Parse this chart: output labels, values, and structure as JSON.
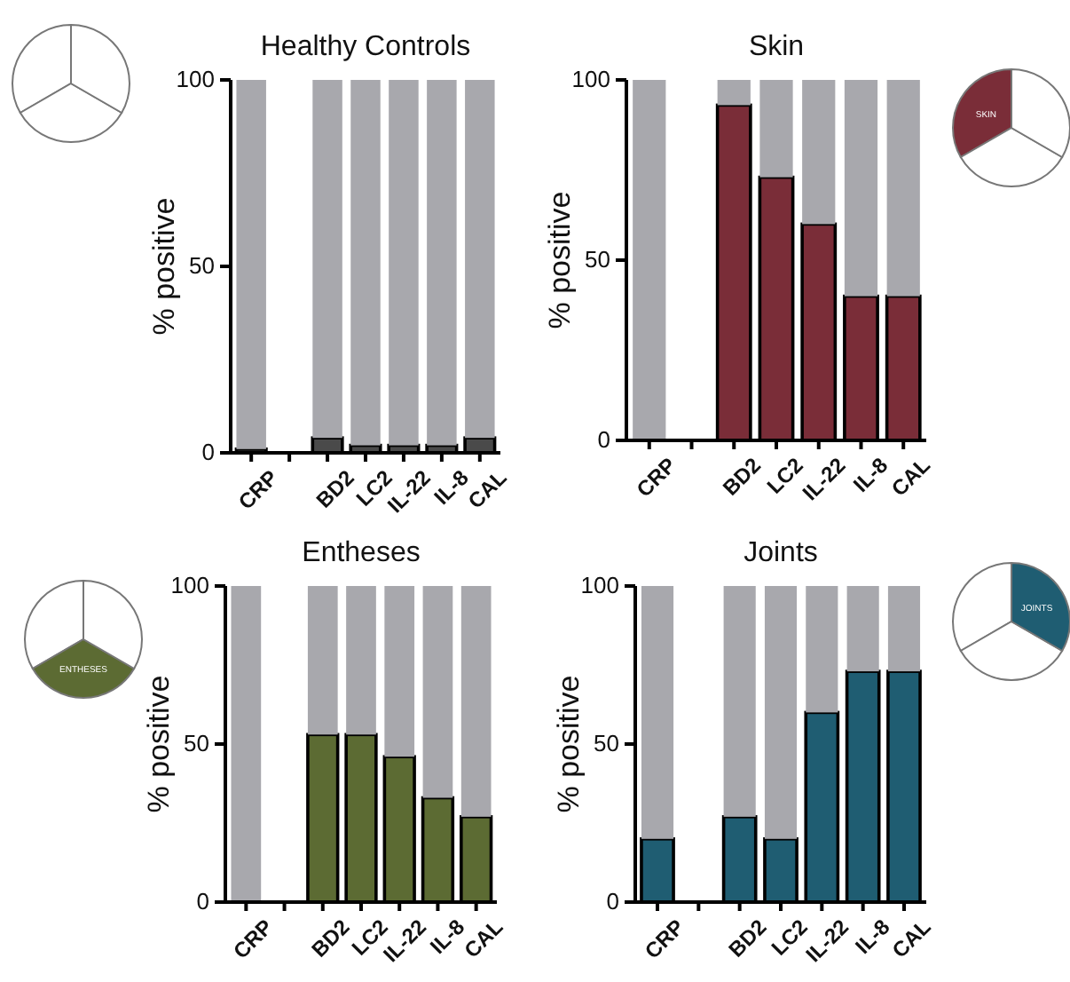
{
  "chart_data": [
    {
      "type": "bar",
      "title": "Healthy Controls",
      "ylabel": "% positive",
      "stacked": true,
      "categories": [
        "CRP",
        null,
        "BD2",
        "LC2",
        "IL-22",
        "IL-8",
        "CAL"
      ],
      "ylim": [
        0,
        100
      ],
      "yticks": [
        0,
        50,
        100
      ],
      "grid": false,
      "series": [
        {
          "color": "#4a4a4a",
          "values": [
            1,
            null,
            4,
            2,
            2,
            2,
            4
          ]
        },
        {
          "color": "#a8a8ad",
          "values": [
            99,
            null,
            96,
            98,
            98,
            98,
            96
          ]
        }
      ]
    },
    {
      "type": "bar",
      "title": "Skin",
      "ylabel": "% positive",
      "stacked": true,
      "categories": [
        "CRP",
        null,
        "BD2",
        "LC2",
        "IL-22",
        "IL-8",
        "CAL"
      ],
      "ylim": [
        0,
        100
      ],
      "yticks": [
        0,
        50,
        100
      ],
      "grid": false,
      "annotations": [
        "SKIN"
      ],
      "series": [
        {
          "color": "#7a2d38",
          "values": [
            0,
            null,
            93,
            73,
            60,
            40,
            40
          ]
        },
        {
          "color": "#a8a8ad",
          "values": [
            100,
            null,
            7,
            27,
            40,
            60,
            60
          ]
        }
      ]
    },
    {
      "type": "bar",
      "title": "Entheses",
      "ylabel": "% positive",
      "stacked": true,
      "categories": [
        "CRP",
        null,
        "BD2",
        "LC2",
        "IL-22",
        "IL-8",
        "CAL"
      ],
      "ylim": [
        0,
        100
      ],
      "yticks": [
        0,
        50,
        100
      ],
      "grid": false,
      "annotations": [
        "ENTHESES"
      ],
      "series": [
        {
          "color": "#5c6b33",
          "values": [
            0,
            null,
            53,
            53,
            46,
            33,
            27
          ]
        },
        {
          "color": "#a8a8ad",
          "values": [
            100,
            null,
            47,
            47,
            54,
            67,
            73
          ]
        }
      ]
    },
    {
      "type": "bar",
      "title": "Joints",
      "ylabel": "% positive",
      "stacked": true,
      "categories": [
        "CRP",
        null,
        "BD2",
        "LC2",
        "IL-22",
        "IL-8",
        "CAL"
      ],
      "ylim": [
        0,
        100
      ],
      "yticks": [
        0,
        50,
        100
      ],
      "grid": false,
      "annotations": [
        "JOINTS"
      ],
      "series": [
        {
          "color": "#1f5d72",
          "values": [
            20,
            null,
            27,
            20,
            60,
            73,
            73
          ]
        },
        {
          "color": "#a8a8ad",
          "values": [
            80,
            null,
            73,
            80,
            40,
            27,
            27
          ]
        }
      ]
    }
  ]
}
